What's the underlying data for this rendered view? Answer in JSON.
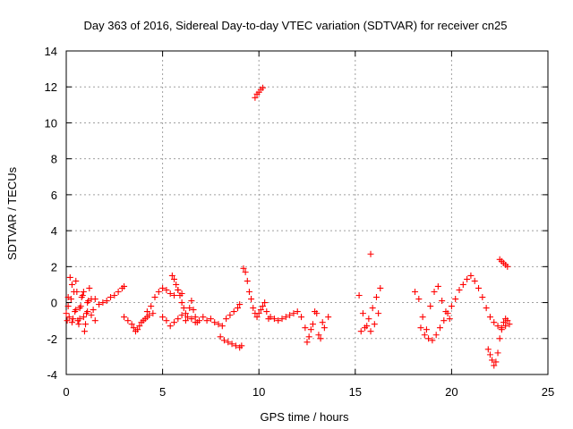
{
  "chart_data": {
    "type": "scatter",
    "title": "Day 363 of 2016, Sidereal Day-to-day VTEC variation (SDTVAR) for receiver cn25",
    "xlabel": "GPS time / hours",
    "ylabel": "SDTVAR / TECUs",
    "xlim": [
      0,
      25
    ],
    "ylim": [
      -4,
      14
    ],
    "xticks": [
      0,
      5,
      10,
      15,
      20,
      25
    ],
    "yticks": [
      -4,
      -2,
      0,
      2,
      4,
      6,
      8,
      10,
      12,
      14
    ],
    "xtick_labels": [
      "0",
      "5",
      "10",
      "15",
      "20",
      "25"
    ],
    "ytick_labels": [
      "-4",
      "-2",
      "0",
      "2",
      "4",
      "6",
      "8",
      "10",
      "12",
      "14"
    ],
    "grid": true,
    "marker": "+",
    "color": "#ff0000",
    "series": [
      {
        "name": "sdtvar",
        "x": [
          0.0,
          0.1,
          0.2,
          0.3,
          0.4,
          0.5,
          0.6,
          0.7,
          0.8,
          0.9,
          1.0,
          1.1,
          1.2,
          1.3,
          1.4,
          1.5,
          0.05,
          0.15,
          0.25,
          0.35,
          0.45,
          0.55,
          0.65,
          0.75,
          0.85,
          0.95,
          1.05,
          1.15,
          0.1,
          0.3,
          0.5,
          0.7,
          0.9,
          1.1,
          1.3,
          1.5,
          1.7,
          1.9,
          2.1,
          2.3,
          2.5,
          2.7,
          2.9,
          3.0,
          3.0,
          3.2,
          3.4,
          3.5,
          3.6,
          3.7,
          3.8,
          3.9,
          4.0,
          4.1,
          4.2,
          4.3,
          4.5,
          4.2,
          4.4,
          4.6,
          4.8,
          5.0,
          5.2,
          5.4,
          5.6,
          5.8,
          6.0,
          5.0,
          5.2,
          5.4,
          5.6,
          5.8,
          6.0,
          6.2,
          5.5,
          5.6,
          5.7,
          5.8,
          5.9,
          6.0,
          6.1,
          6.2,
          6.3,
          6.4,
          6.5,
          6.6,
          6.7,
          6.8,
          6.5,
          6.7,
          6.9,
          7.1,
          7.3,
          7.5,
          7.7,
          7.9,
          8.1,
          8.3,
          8.5,
          8.7,
          8.9,
          9.0,
          8.0,
          8.2,
          8.4,
          8.6,
          8.8,
          9.0,
          9.1,
          9.2,
          9.3,
          9.4,
          9.5,
          9.6,
          9.7,
          9.8,
          9.9,
          10.0,
          10.1,
          10.2,
          10.3,
          10.4,
          10.5,
          9.8,
          9.9,
          10.0,
          10.1,
          10.2,
          10.6,
          10.8,
          11.0,
          11.2,
          11.4,
          11.6,
          11.8,
          12.0,
          12.2,
          12.4,
          12.6,
          12.8,
          13.0,
          13.2,
          13.4,
          13.6,
          12.5,
          12.7,
          12.9,
          13.1,
          13.3,
          15.2,
          15.4,
          15.6,
          15.8,
          16.0,
          16.2,
          15.3,
          15.5,
          15.7,
          15.9,
          16.1,
          16.3,
          15.8,
          18.1,
          18.3,
          18.5,
          18.7,
          18.9,
          19.1,
          19.3,
          19.5,
          19.7,
          19.9,
          18.4,
          18.6,
          18.8,
          19.0,
          19.2,
          19.4,
          19.6,
          19.8,
          20.0,
          20.2,
          20.4,
          20.6,
          20.8,
          21.0,
          21.2,
          21.4,
          21.6,
          21.8,
          22.0,
          22.2,
          22.4,
          22.6,
          22.8,
          23.0,
          21.9,
          22.0,
          22.1,
          22.2,
          22.3,
          22.4,
          22.5,
          22.6,
          22.7,
          22.8,
          22.9,
          22.5,
          22.6,
          22.7,
          22.8,
          22.9
        ],
        "y": [
          -0.6,
          -0.2,
          1.4,
          1.0,
          0.6,
          -0.4,
          -1.0,
          -0.3,
          0.3,
          -0.8,
          -1.2,
          -0.5,
          0.8,
          0.2,
          -0.4,
          -1.0,
          -1.0,
          -0.8,
          0.2,
          -0.9,
          -0.5,
          0.6,
          -1.2,
          -0.2,
          0.4,
          -1.6,
          -0.6,
          0.1,
          0.3,
          -1.1,
          1.2,
          -0.9,
          0.6,
          0.0,
          -0.7,
          0.2,
          -0.1,
          0.0,
          0.1,
          0.3,
          0.4,
          0.6,
          0.8,
          0.9,
          -0.8,
          -1.0,
          -1.2,
          -1.4,
          -1.6,
          -1.5,
          -1.3,
          -1.1,
          -1.0,
          -0.9,
          -0.8,
          -0.7,
          -0.6,
          -0.5,
          -0.2,
          0.3,
          0.6,
          0.8,
          0.7,
          0.5,
          0.4,
          0.7,
          0.5,
          -0.8,
          -1.0,
          -1.3,
          -1.1,
          -0.9,
          -0.7,
          -1.0,
          1.5,
          1.3,
          1.0,
          0.7,
          0.4,
          0.0,
          -0.3,
          -0.6,
          -0.8,
          -0.3,
          0.1,
          -0.4,
          -0.8,
          -1.1,
          -0.9,
          -1.1,
          -1.0,
          -0.8,
          -1.0,
          -0.9,
          -1.1,
          -1.2,
          -1.3,
          -0.9,
          -0.7,
          -0.5,
          -0.3,
          -0.1,
          -1.9,
          -2.1,
          -2.2,
          -2.3,
          -2.4,
          -2.5,
          -2.4,
          1.9,
          1.7,
          1.2,
          0.6,
          0.2,
          -0.3,
          -0.6,
          -0.8,
          -0.6,
          -0.4,
          -0.2,
          0.0,
          -0.5,
          -0.9,
          11.4,
          11.6,
          11.7,
          11.85,
          11.95,
          -0.8,
          -0.9,
          -1.0,
          -0.9,
          -0.8,
          -0.7,
          -0.6,
          -0.5,
          -0.8,
          -1.4,
          -1.9,
          -1.2,
          -0.6,
          -2.0,
          -1.4,
          -0.8,
          -2.2,
          -1.5,
          -0.5,
          -1.8,
          -1.1,
          0.4,
          -0.6,
          -1.3,
          -1.6,
          -1.2,
          -0.6,
          -1.6,
          -1.4,
          -0.9,
          -0.3,
          0.3,
          0.8,
          2.7,
          0.6,
          0.2,
          -0.8,
          -1.5,
          -0.2,
          0.6,
          0.9,
          0.1,
          -0.5,
          -0.9,
          -1.4,
          -1.8,
          -2.0,
          -2.1,
          -1.8,
          -1.4,
          -1.0,
          -0.6,
          -0.2,
          0.2,
          0.7,
          1.0,
          1.3,
          1.5,
          1.2,
          0.8,
          0.3,
          -0.3,
          -0.8,
          -1.1,
          -1.3,
          -1.4,
          -1.3,
          -1.2,
          -2.6,
          -2.9,
          -3.2,
          -3.5,
          -3.3,
          -2.8,
          -2.0,
          -1.5,
          -1.1,
          -0.9,
          -1.0,
          2.4,
          2.3,
          2.2,
          2.1,
          2.0
        ]
      }
    ]
  }
}
